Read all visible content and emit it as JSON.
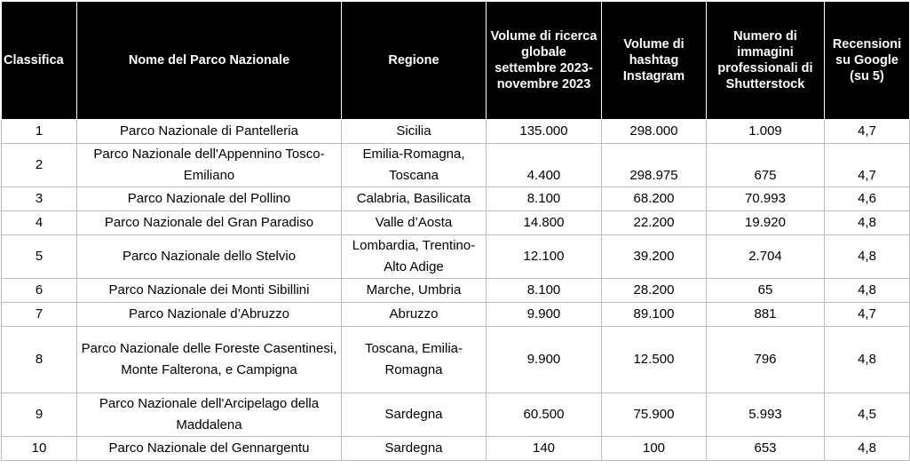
{
  "headers": [
    "Classifica",
    "Nome del Parco Nazionale",
    "Regione",
    "Volume di ricerca globale settembre 2023-novembre 2023",
    "Volume di hashtag Instagram",
    "Numero di immagini professionali di Shutterstock",
    "Recensioni su Google (su 5)"
  ],
  "rows": [
    {
      "rank": "1",
      "name": "Parco Nazionale di Pantelleria",
      "region": "Sicilia",
      "search": "135.000",
      "hashtag": "298.000",
      "images": "1.009",
      "rating": "4,7"
    },
    {
      "rank": "2",
      "name": "Parco Nazionale dell'Appennino Tosco-Emiliano",
      "region": "Emilia-Romagna, Toscana",
      "search": "4.400",
      "hashtag": "298.975",
      "images": "675",
      "rating": "4,7"
    },
    {
      "rank": "3",
      "name": "Parco Nazionale del Pollino",
      "region": "Calabria, Basilicata",
      "search": "8.100",
      "hashtag": "68.200",
      "images": "70.993",
      "rating": "4,6"
    },
    {
      "rank": "4",
      "name": "Parco Nazionale del Gran Paradiso",
      "region": "Valle d’Aosta",
      "search": "14.800",
      "hashtag": "22.200",
      "images": "19.920",
      "rating": "4,8"
    },
    {
      "rank": "5",
      "name": "Parco Nazionale dello Stelvio",
      "region": "Lombardia, Trentino-Alto Adige",
      "search": "12.100",
      "hashtag": "39.200",
      "images": "2.704",
      "rating": "4,8"
    },
    {
      "rank": "6",
      "name": "Parco Nazionale dei Monti Sibillini",
      "region": "Marche, Umbria",
      "search": "8.100",
      "hashtag": "28.200",
      "images": "65",
      "rating": "4,8"
    },
    {
      "rank": "7",
      "name": "Parco Nazionale d’Abruzzo",
      "region": "Abruzzo",
      "search": "9.900",
      "hashtag": "89.100",
      "images": "881",
      "rating": "4,7"
    },
    {
      "rank": "8",
      "name": "Parco Nazionale delle Foreste Casentinesi, Monte Falterona, e Campigna",
      "region": "Toscana, Emilia-Romagna",
      "search": "9.900",
      "hashtag": "12.500",
      "images": "796",
      "rating": "4,8"
    },
    {
      "rank": "9",
      "name": "Parco Nazionale dell'Arcipelago della Maddalena",
      "region": "Sardegna",
      "search": "60.500",
      "hashtag": "75.900",
      "images": "5.993",
      "rating": "4,5"
    },
    {
      "rank": "10",
      "name": "Parco Nazionale del Gennargentu",
      "region": "Sardegna",
      "search": "140",
      "hashtag": "100",
      "images": "653",
      "rating": "4,8"
    }
  ]
}
